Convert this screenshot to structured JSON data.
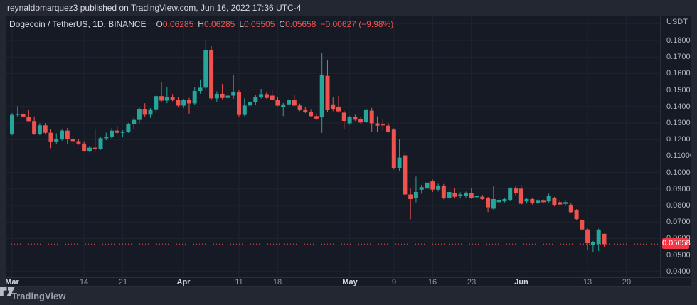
{
  "top_bar": {
    "text": "reynaldomarquez3 published on TradingView.com, Jun 16, 2022 17:36 UTC-4"
  },
  "legend": {
    "symbol": "Dogecoin / TetherUS, 1D, BINANCE",
    "o_label": "O",
    "o_value": "0.06285",
    "h_label": "H",
    "h_value": "0.06285",
    "l_label": "L",
    "l_value": "0.05505",
    "c_label": "C",
    "c_value": "0.05658",
    "change": "−0.00627 (−9.98%)"
  },
  "price_axis": {
    "currency": "USDT",
    "last_price_label": "0.05658",
    "last_price_value": 0.05658,
    "ticks": [
      {
        "label": "0.18000",
        "value": 0.18
      },
      {
        "label": "0.17000",
        "value": 0.17
      },
      {
        "label": "0.16000",
        "value": 0.16
      },
      {
        "label": "0.15000",
        "value": 0.15
      },
      {
        "label": "0.14000",
        "value": 0.14
      },
      {
        "label": "0.13000",
        "value": 0.13
      },
      {
        "label": "0.12000",
        "value": 0.12
      },
      {
        "label": "0.11000",
        "value": 0.11
      },
      {
        "label": "0.10000",
        "value": 0.1
      },
      {
        "label": "0.09000",
        "value": 0.09
      },
      {
        "label": "0.08000",
        "value": 0.08
      },
      {
        "label": "0.07000",
        "value": 0.07
      },
      {
        "label": "0.06000",
        "value": 0.06
      },
      {
        "label": "0.05000",
        "value": 0.05
      },
      {
        "label": "0.04000",
        "value": 0.04
      }
    ]
  },
  "time_axis": {
    "ticks": [
      {
        "label": "Mar",
        "day": 0,
        "major": true
      },
      {
        "label": "14",
        "day": 13,
        "major": false
      },
      {
        "label": "21",
        "day": 20,
        "major": false
      },
      {
        "label": "Apr",
        "day": 31,
        "major": true
      },
      {
        "label": "11",
        "day": 41,
        "major": false
      },
      {
        "label": "18",
        "day": 48,
        "major": false
      },
      {
        "label": "May",
        "day": 61,
        "major": true
      },
      {
        "label": "9",
        "day": 69,
        "major": false
      },
      {
        "label": "16",
        "day": 76,
        "major": false
      },
      {
        "label": "23",
        "day": 83,
        "major": false
      },
      {
        "label": "Jun",
        "day": 92,
        "major": true
      },
      {
        "label": "13",
        "day": 104,
        "major": false
      },
      {
        "label": "20",
        "day": 111,
        "major": false
      }
    ]
  },
  "footer": {
    "brand": "TradingView"
  },
  "colors": {
    "up": "#26a69a",
    "down": "#ef5350",
    "last_price_badge": "#f23645",
    "last_price_line": "#ef5350"
  },
  "chart_data": {
    "type": "candlestick",
    "title": "Dogecoin / TetherUS",
    "interval": "1D",
    "exchange": "BINANCE",
    "quote_currency": "USDT",
    "ylim": [
      0.03647,
      0.19509
    ],
    "gridline_prices": [
      0.04,
      0.05,
      0.06,
      0.07,
      0.08,
      0.09,
      0.1,
      0.11,
      0.12,
      0.13,
      0.14,
      0.15,
      0.16,
      0.17,
      0.18,
      0.19
    ],
    "columns": [
      "date",
      "open",
      "high",
      "low",
      "close"
    ],
    "rows": [
      [
        "Mar 1",
        0.1234,
        0.136,
        0.1225,
        0.1349
      ],
      [
        "Mar 2",
        0.1349,
        0.1402,
        0.1338,
        0.1356
      ],
      [
        "Mar 3",
        0.1356,
        0.1408,
        0.1348,
        0.1339
      ],
      [
        "Mar 4",
        0.1339,
        0.1378,
        0.131,
        0.1312
      ],
      [
        "Mar 5",
        0.1312,
        0.134,
        0.1228,
        0.1234
      ],
      [
        "Mar 6",
        0.1234,
        0.1298,
        0.1226,
        0.1286
      ],
      [
        "Mar 7",
        0.1286,
        0.13,
        0.123,
        0.1241
      ],
      [
        "Mar 8",
        0.1241,
        0.1262,
        0.1148,
        0.1184
      ],
      [
        "Mar 9",
        0.1184,
        0.1238,
        0.1172,
        0.1201
      ],
      [
        "Mar 10",
        0.1201,
        0.1263,
        0.1192,
        0.1254
      ],
      [
        "Mar 11",
        0.1254,
        0.127,
        0.1175,
        0.1205
      ],
      [
        "Mar 12",
        0.1205,
        0.1228,
        0.1172,
        0.1186
      ],
      [
        "Mar 13",
        0.1186,
        0.1205,
        0.1168,
        0.1176
      ],
      [
        "Mar 14",
        0.1176,
        0.1186,
        0.1126,
        0.1132
      ],
      [
        "Mar 15",
        0.1132,
        0.1158,
        0.1122,
        0.1151
      ],
      [
        "Mar 16",
        0.1151,
        0.1262,
        0.1126,
        0.1144
      ],
      [
        "Mar 17",
        0.1144,
        0.1218,
        0.1138,
        0.1208
      ],
      [
        "Mar 18",
        0.1208,
        0.1242,
        0.1196,
        0.1216
      ],
      [
        "Mar 19",
        0.1216,
        0.1268,
        0.1208,
        0.1254
      ],
      [
        "Mar 20",
        0.1254,
        0.128,
        0.1232,
        0.1241
      ],
      [
        "Mar 21",
        0.1241,
        0.1256,
        0.1216,
        0.1246
      ],
      [
        "Mar 22",
        0.1246,
        0.13,
        0.124,
        0.1292
      ],
      [
        "Mar 23",
        0.1292,
        0.1332,
        0.1264,
        0.1319
      ],
      [
        "Mar 24",
        0.1319,
        0.1394,
        0.1298,
        0.1384
      ],
      [
        "Mar 25",
        0.1384,
        0.142,
        0.1338,
        0.135
      ],
      [
        "Mar 26",
        0.135,
        0.139,
        0.1332,
        0.1379
      ],
      [
        "Mar 27",
        0.1379,
        0.1472,
        0.1362,
        0.1463
      ],
      [
        "Mar 28",
        0.1463,
        0.155,
        0.1428,
        0.1436
      ],
      [
        "Mar 29",
        0.1436,
        0.1518,
        0.142,
        0.1458
      ],
      [
        "Mar 30",
        0.1458,
        0.1476,
        0.1432,
        0.1441
      ],
      [
        "Mar 31",
        0.1441,
        0.1456,
        0.1394,
        0.1406
      ],
      [
        "Apr 1",
        0.1406,
        0.1447,
        0.139,
        0.1439
      ],
      [
        "Apr 2",
        0.1439,
        0.1452,
        0.1354,
        0.1419
      ],
      [
        "Apr 3",
        0.1419,
        0.1519,
        0.1408,
        0.1494
      ],
      [
        "Apr 4",
        0.1494,
        0.1564,
        0.1478,
        0.1514
      ],
      [
        "Apr 5",
        0.1514,
        0.1808,
        0.1498,
        0.1744
      ],
      [
        "Apr 6",
        0.1744,
        0.1768,
        0.1438,
        0.1449
      ],
      [
        "Apr 7",
        0.1449,
        0.1492,
        0.1428,
        0.1477
      ],
      [
        "Apr 8",
        0.1477,
        0.1538,
        0.1444,
        0.1452
      ],
      [
        "Apr 9",
        0.1452,
        0.1482,
        0.1438,
        0.1466
      ],
      [
        "Apr 10",
        0.1466,
        0.159,
        0.1446,
        0.1489
      ],
      [
        "Apr 11",
        0.1489,
        0.15,
        0.1338,
        0.1349
      ],
      [
        "Apr 12",
        0.1349,
        0.1449,
        0.1342,
        0.1406
      ],
      [
        "Apr 13",
        0.1406,
        0.1448,
        0.1396,
        0.1428
      ],
      [
        "Apr 14",
        0.1428,
        0.147,
        0.1412,
        0.1456
      ],
      [
        "Apr 15",
        0.1456,
        0.1507,
        0.1448,
        0.1475
      ],
      [
        "Apr 16",
        0.1475,
        0.149,
        0.1446,
        0.1452
      ],
      [
        "Apr 17",
        0.1466,
        0.15,
        0.1436,
        0.1442
      ],
      [
        "Apr 18",
        0.1442,
        0.146,
        0.1402,
        0.1406
      ],
      [
        "Apr 19",
        0.1399,
        0.1422,
        0.1342,
        0.1413
      ],
      [
        "Apr 20",
        0.1413,
        0.1444,
        0.1408,
        0.1438
      ],
      [
        "Apr 21",
        0.1438,
        0.1471,
        0.1402,
        0.1406
      ],
      [
        "Apr 22",
        0.1406,
        0.1418,
        0.1372,
        0.1378
      ],
      [
        "Apr 23",
        0.1378,
        0.1395,
        0.136,
        0.1366
      ],
      [
        "Apr 24",
        0.1366,
        0.138,
        0.1336,
        0.1342
      ],
      [
        "Apr 25",
        0.1342,
        0.1358,
        0.1318,
        0.1327
      ],
      [
        "Apr 26",
        0.1334,
        0.1722,
        0.1241,
        0.1593
      ],
      [
        "Apr 27",
        0.1586,
        0.1679,
        0.1368,
        0.1378
      ],
      [
        "Apr 28",
        0.1413,
        0.1458,
        0.1372,
        0.1385
      ],
      [
        "Apr 29",
        0.1395,
        0.1464,
        0.1362,
        0.1371
      ],
      [
        "Apr 30",
        0.1363,
        0.1375,
        0.1263,
        0.1313
      ],
      [
        "May 1",
        0.1298,
        0.1342,
        0.129,
        0.1334
      ],
      [
        "May 2",
        0.1337,
        0.135,
        0.1312,
        0.132
      ],
      [
        "May 3",
        0.1322,
        0.1336,
        0.1295,
        0.1303
      ],
      [
        "May 4",
        0.1306,
        0.1388,
        0.13,
        0.1378
      ],
      [
        "May 5",
        0.1375,
        0.1392,
        0.1248,
        0.1298
      ],
      [
        "May 6",
        0.1298,
        0.1341,
        0.1248,
        0.1284
      ],
      [
        "May 7",
        0.1291,
        0.132,
        0.1255,
        0.1286
      ],
      [
        "May 8",
        0.1284,
        0.13,
        0.1242,
        0.1248
      ],
      [
        "May 9",
        0.126,
        0.1268,
        0.1018,
        0.1026
      ],
      [
        "May 10",
        0.1026,
        0.1205,
        0.101,
        0.109
      ],
      [
        "May 11",
        0.1104,
        0.1125,
        0.086,
        0.0867
      ],
      [
        "May 12",
        0.0867,
        0.0902,
        0.0717,
        0.0839
      ],
      [
        "May 13",
        0.0846,
        0.0975,
        0.082,
        0.0882
      ],
      [
        "May 14",
        0.0896,
        0.0925,
        0.0872,
        0.0911
      ],
      [
        "May 15",
        0.0903,
        0.0948,
        0.089,
        0.0939
      ],
      [
        "May 16",
        0.0946,
        0.0958,
        0.0882,
        0.0896
      ],
      [
        "May 17",
        0.0896,
        0.0932,
        0.0885,
        0.0918
      ],
      [
        "May 18",
        0.0918,
        0.093,
        0.0838,
        0.0846
      ],
      [
        "May 19",
        0.0846,
        0.0895,
        0.0836,
        0.0882
      ],
      [
        "May 20",
        0.0877,
        0.0903,
        0.0842,
        0.0853
      ],
      [
        "May 21",
        0.0857,
        0.088,
        0.0842,
        0.0867
      ],
      [
        "May 22",
        0.086,
        0.0884,
        0.0848,
        0.0874
      ],
      [
        "May 23",
        0.0877,
        0.0906,
        0.084,
        0.0846
      ],
      [
        "May 24",
        0.085,
        0.0874,
        0.0824,
        0.0856
      ],
      [
        "May 25",
        0.0853,
        0.0864,
        0.083,
        0.0839
      ],
      [
        "May 26",
        0.0846,
        0.0852,
        0.076,
        0.0789
      ],
      [
        "May 27",
        0.0781,
        0.0918,
        0.0775,
        0.0839
      ],
      [
        "May 28",
        0.082,
        0.0846,
        0.0812,
        0.0832
      ],
      [
        "May 29",
        0.0825,
        0.0848,
        0.0818,
        0.0839
      ],
      [
        "May 30",
        0.0832,
        0.091,
        0.0826,
        0.0903
      ],
      [
        "May 31",
        0.0903,
        0.0916,
        0.0862,
        0.0874
      ],
      [
        "Jun 1",
        0.0902,
        0.0925,
        0.0805,
        0.081
      ],
      [
        "Jun 2",
        0.0825,
        0.0848,
        0.0812,
        0.0839
      ],
      [
        "Jun 3",
        0.0839,
        0.0848,
        0.0806,
        0.0817
      ],
      [
        "Jun 4",
        0.0817,
        0.0838,
        0.081,
        0.0829
      ],
      [
        "Jun 5",
        0.0829,
        0.0838,
        0.0812,
        0.082
      ],
      [
        "Jun 6",
        0.0825,
        0.0872,
        0.0818,
        0.086
      ],
      [
        "Jun 7",
        0.0845,
        0.0852,
        0.0795,
        0.0803
      ],
      [
        "Jun 8",
        0.082,
        0.0832,
        0.08,
        0.0806
      ],
      [
        "Jun 9",
        0.081,
        0.0828,
        0.0798,
        0.082
      ],
      [
        "Jun 10",
        0.0803,
        0.0815,
        0.0752,
        0.076
      ],
      [
        "Jun 11",
        0.0771,
        0.0778,
        0.0712,
        0.0717
      ],
      [
        "Jun 12",
        0.071,
        0.0718,
        0.0645,
        0.0655
      ],
      [
        "Jun 13",
        0.0655,
        0.0662,
        0.053,
        0.0572
      ],
      [
        "Jun 14",
        0.0561,
        0.0585,
        0.0517,
        0.0576
      ],
      [
        "Jun 15",
        0.0567,
        0.066,
        0.0524,
        0.0654
      ],
      [
        "Jun 16",
        0.06285,
        0.06285,
        0.05505,
        0.05658
      ]
    ]
  }
}
